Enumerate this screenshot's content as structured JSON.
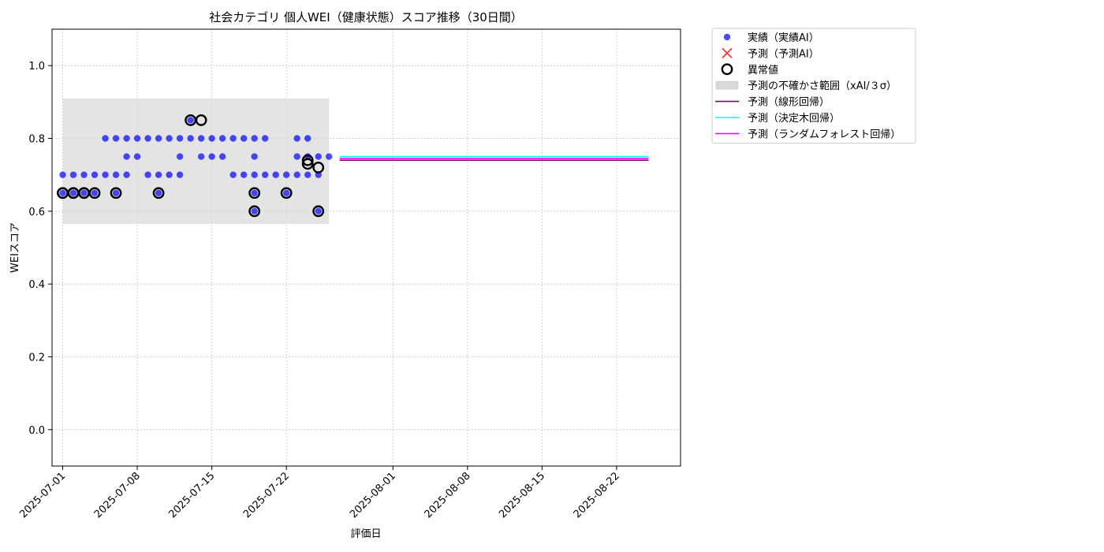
{
  "chart_data": {
    "type": "scatter",
    "title": "社会カテゴリ 個人WEI（健康状態）スコア推移（30日間）",
    "xlabel": "評価日",
    "ylabel": "WEIスコア",
    "ylim": [
      -0.1,
      1.1
    ],
    "xlim": [
      "2025-06-30",
      "2025-08-28"
    ],
    "grid": true,
    "legend_position": "outside-top-right",
    "x_ticks": [
      "2025-07-01",
      "2025-07-08",
      "2025-07-15",
      "2025-07-22",
      "2025-08-01",
      "2025-08-08",
      "2025-08-15",
      "2025-08-22"
    ],
    "y_ticks": [
      "0.0",
      "0.2",
      "0.4",
      "0.6",
      "0.8",
      "1.0"
    ],
    "uncertainty_band": {
      "x_start": "2025-07-01",
      "x_end": "2025-07-26",
      "y_low": 0.565,
      "y_high": 0.91
    },
    "series": [
      {
        "name": "実績（実績AI）",
        "kind": "scatter",
        "color": "#0000ff",
        "points": [
          [
            "2025-07-01",
            0.65
          ],
          [
            "2025-07-01",
            0.7
          ],
          [
            "2025-07-02",
            0.65
          ],
          [
            "2025-07-02",
            0.7
          ],
          [
            "2025-07-03",
            0.65
          ],
          [
            "2025-07-03",
            0.7
          ],
          [
            "2025-07-04",
            0.65
          ],
          [
            "2025-07-04",
            0.7
          ],
          [
            "2025-07-05",
            0.7
          ],
          [
            "2025-07-05",
            0.8
          ],
          [
            "2025-07-06",
            0.8
          ],
          [
            "2025-07-06",
            0.7
          ],
          [
            "2025-07-06",
            0.65
          ],
          [
            "2025-07-07",
            0.7
          ],
          [
            "2025-07-07",
            0.75
          ],
          [
            "2025-07-07",
            0.8
          ],
          [
            "2025-07-08",
            0.75
          ],
          [
            "2025-07-08",
            0.8
          ],
          [
            "2025-07-09",
            0.8
          ],
          [
            "2025-07-09",
            0.7
          ],
          [
            "2025-07-10",
            0.7
          ],
          [
            "2025-07-10",
            0.65
          ],
          [
            "2025-07-10",
            0.8
          ],
          [
            "2025-07-11",
            0.7
          ],
          [
            "2025-07-11",
            0.8
          ],
          [
            "2025-07-12",
            0.75
          ],
          [
            "2025-07-12",
            0.7
          ],
          [
            "2025-07-12",
            0.8
          ],
          [
            "2025-07-13",
            0.8
          ],
          [
            "2025-07-13",
            0.85
          ],
          [
            "2025-07-14",
            0.8
          ],
          [
            "2025-07-14",
            0.75
          ],
          [
            "2025-07-15",
            0.8
          ],
          [
            "2025-07-15",
            0.75
          ],
          [
            "2025-07-16",
            0.8
          ],
          [
            "2025-07-16",
            0.75
          ],
          [
            "2025-07-17",
            0.8
          ],
          [
            "2025-07-17",
            0.7
          ],
          [
            "2025-07-18",
            0.8
          ],
          [
            "2025-07-18",
            0.7
          ],
          [
            "2025-07-19",
            0.7
          ],
          [
            "2025-07-19",
            0.75
          ],
          [
            "2025-07-19",
            0.8
          ],
          [
            "2025-07-19",
            0.65
          ],
          [
            "2025-07-19",
            0.6
          ],
          [
            "2025-07-20",
            0.8
          ],
          [
            "2025-07-20",
            0.7
          ],
          [
            "2025-07-21",
            0.7
          ],
          [
            "2025-07-22",
            0.7
          ],
          [
            "2025-07-22",
            0.65
          ],
          [
            "2025-07-23",
            0.8
          ],
          [
            "2025-07-23",
            0.75
          ],
          [
            "2025-07-23",
            0.7
          ],
          [
            "2025-07-24",
            0.8
          ],
          [
            "2025-07-24",
            0.75
          ],
          [
            "2025-07-24",
            0.7
          ],
          [
            "2025-07-25",
            0.75
          ],
          [
            "2025-07-25",
            0.7
          ],
          [
            "2025-07-25",
            0.6
          ],
          [
            "2025-07-26",
            0.75
          ]
        ]
      },
      {
        "name": "予測（予測AI）",
        "kind": "x-marker",
        "color": "#ff0000",
        "points": []
      },
      {
        "name": "異常値",
        "kind": "ring",
        "color": "#000000",
        "points": [
          [
            "2025-07-01",
            0.65
          ],
          [
            "2025-07-01",
            0.65
          ],
          [
            "2025-07-02",
            0.65
          ],
          [
            "2025-07-02",
            0.65
          ],
          [
            "2025-07-03",
            0.65
          ],
          [
            "2025-07-03",
            0.65
          ],
          [
            "2025-07-04",
            0.65
          ],
          [
            "2025-07-06",
            0.65
          ],
          [
            "2025-07-10",
            0.65
          ],
          [
            "2025-07-13",
            0.85
          ],
          [
            "2025-07-14",
            0.85
          ],
          [
            "2025-07-19",
            0.65
          ],
          [
            "2025-07-19",
            0.6
          ],
          [
            "2025-07-22",
            0.65
          ],
          [
            "2025-07-24",
            0.74
          ],
          [
            "2025-07-24",
            0.73
          ],
          [
            "2025-07-25",
            0.72
          ],
          [
            "2025-07-25",
            0.6
          ]
        ]
      },
      {
        "name": "予測（線形回帰）",
        "kind": "line",
        "color": "#800080",
        "points": [
          [
            "2025-07-27",
            0.74
          ],
          [
            "2025-08-25",
            0.74
          ]
        ]
      },
      {
        "name": "予測（決定木回帰）",
        "kind": "line",
        "color": "#00ffff",
        "points": [
          [
            "2025-07-27",
            0.75
          ],
          [
            "2025-08-25",
            0.75
          ]
        ]
      },
      {
        "name": "予測（ランダムフォレスト回帰）",
        "kind": "line",
        "color": "#ff00ff",
        "points": [
          [
            "2025-07-27",
            0.745
          ],
          [
            "2025-08-25",
            0.745
          ]
        ]
      }
    ],
    "legend": [
      {
        "label": "実績（実績AI）",
        "symbol": "dot",
        "color": "#0000ff"
      },
      {
        "label": "予測（予測AI）",
        "symbol": "x",
        "color": "#ff0000"
      },
      {
        "label": "異常値",
        "symbol": "ring",
        "color": "#000000"
      },
      {
        "label": "予測の不確かさ範囲（xAI/３σ）",
        "symbol": "band",
        "color": "#d9d9d9"
      },
      {
        "label": "予測（線形回帰）",
        "symbol": "line",
        "color": "#800080"
      },
      {
        "label": "予測（決定木回帰）",
        "symbol": "line",
        "color": "#00ffff"
      },
      {
        "label": "予測（ランダムフォレスト回帰）",
        "symbol": "line",
        "color": "#ff00ff"
      }
    ]
  }
}
